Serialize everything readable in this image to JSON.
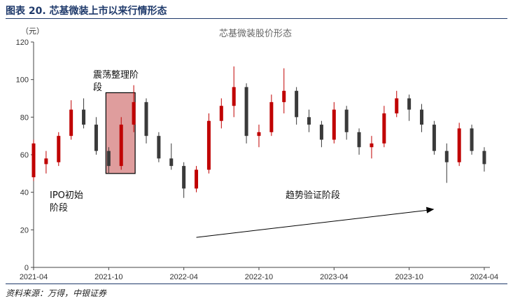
{
  "figure": {
    "title": "图表 20. 芯基微装上市以来行情形态",
    "source": "资料来源：万得，中银证券"
  },
  "chart_data": {
    "type": "candlestick",
    "title": "芯基微装股价形态",
    "ylabel": "（元）",
    "xlabel": "",
    "ylim": [
      0,
      120
    ],
    "yticks": [
      0,
      20,
      40,
      60,
      80,
      100,
      120
    ],
    "xticks": [
      "2021-04",
      "2021-10",
      "2022-04",
      "2022-10",
      "2023-04",
      "2023-10",
      "2024-04"
    ],
    "x_range": [
      "2021-04",
      "2024-04"
    ],
    "grid": false,
    "colors": {
      "up": "#c00000",
      "down": "#3a3a3a",
      "box_fill": "#d98c8c",
      "box_stroke": "#000000"
    },
    "series": [
      {
        "date": "2021-04",
        "open": 48,
        "high": 68,
        "low": 46,
        "close": 66
      },
      {
        "date": "2021-05",
        "open": 55,
        "high": 62,
        "low": 50,
        "close": 58
      },
      {
        "date": "2021-06",
        "open": 56,
        "high": 72,
        "low": 54,
        "close": 70
      },
      {
        "date": "2021-07",
        "open": 70,
        "high": 89,
        "low": 68,
        "close": 84
      },
      {
        "date": "2021-08",
        "open": 84,
        "high": 90,
        "low": 74,
        "close": 76
      },
      {
        "date": "2021-09",
        "open": 76,
        "high": 80,
        "low": 60,
        "close": 62
      },
      {
        "date": "2021-10",
        "open": 62,
        "high": 64,
        "low": 50,
        "close": 54
      },
      {
        "date": "2021-11",
        "open": 54,
        "high": 80,
        "low": 52,
        "close": 76
      },
      {
        "date": "2021-12",
        "open": 76,
        "high": 97,
        "low": 72,
        "close": 88
      },
      {
        "date": "2022-01",
        "open": 88,
        "high": 90,
        "low": 66,
        "close": 70
      },
      {
        "date": "2022-02",
        "open": 70,
        "high": 72,
        "low": 56,
        "close": 58
      },
      {
        "date": "2022-03",
        "open": 58,
        "high": 66,
        "low": 52,
        "close": 54
      },
      {
        "date": "2022-04",
        "open": 54,
        "high": 56,
        "low": 37,
        "close": 42
      },
      {
        "date": "2022-05",
        "open": 42,
        "high": 54,
        "low": 40,
        "close": 52
      },
      {
        "date": "2022-06",
        "open": 52,
        "high": 82,
        "low": 50,
        "close": 78
      },
      {
        "date": "2022-07",
        "open": 78,
        "high": 90,
        "low": 74,
        "close": 86
      },
      {
        "date": "2022-08",
        "open": 86,
        "high": 107,
        "low": 80,
        "close": 96
      },
      {
        "date": "2022-09",
        "open": 96,
        "high": 98,
        "low": 66,
        "close": 70
      },
      {
        "date": "2022-10",
        "open": 70,
        "high": 76,
        "low": 64,
        "close": 72
      },
      {
        "date": "2022-11",
        "open": 72,
        "high": 92,
        "low": 70,
        "close": 88
      },
      {
        "date": "2022-12",
        "open": 88,
        "high": 106,
        "low": 82,
        "close": 94
      },
      {
        "date": "2023-01",
        "open": 94,
        "high": 96,
        "low": 76,
        "close": 80
      },
      {
        "date": "2023-02",
        "open": 80,
        "high": 84,
        "low": 72,
        "close": 76
      },
      {
        "date": "2023-03",
        "open": 76,
        "high": 78,
        "low": 64,
        "close": 68
      },
      {
        "date": "2023-04",
        "open": 68,
        "high": 88,
        "low": 66,
        "close": 84
      },
      {
        "date": "2023-05",
        "open": 84,
        "high": 86,
        "low": 68,
        "close": 72
      },
      {
        "date": "2023-06",
        "open": 72,
        "high": 74,
        "low": 60,
        "close": 64
      },
      {
        "date": "2023-07",
        "open": 64,
        "high": 70,
        "low": 58,
        "close": 66
      },
      {
        "date": "2023-08",
        "open": 66,
        "high": 86,
        "low": 64,
        "close": 82
      },
      {
        "date": "2023-09",
        "open": 82,
        "high": 94,
        "low": 80,
        "close": 90
      },
      {
        "date": "2023-10",
        "open": 90,
        "high": 92,
        "low": 78,
        "close": 84
      },
      {
        "date": "2023-11",
        "open": 84,
        "high": 87,
        "low": 72,
        "close": 76
      },
      {
        "date": "2023-12",
        "open": 76,
        "high": 78,
        "low": 60,
        "close": 62
      },
      {
        "date": "2024-01",
        "open": 62,
        "high": 66,
        "low": 45,
        "close": 56
      },
      {
        "date": "2024-02",
        "open": 56,
        "high": 77,
        "low": 54,
        "close": 74
      },
      {
        "date": "2024-03",
        "open": 74,
        "high": 76,
        "low": 60,
        "close": 62
      },
      {
        "date": "2024-04",
        "open": 62,
        "high": 64,
        "low": 51,
        "close": 55
      }
    ],
    "annotations": {
      "consolidation_label": "震荡整理阶段",
      "consolidation_box": {
        "x0": "2021-10",
        "x1": "2021-12",
        "y0": 50,
        "y1": 93
      },
      "ipo_label": "IPO初始阶段",
      "trend_label": "趋势验证阶段",
      "trend_arrow": {
        "x0": "2022-05",
        "y0": 16,
        "x1": "2023-12",
        "y1": 31
      }
    }
  }
}
